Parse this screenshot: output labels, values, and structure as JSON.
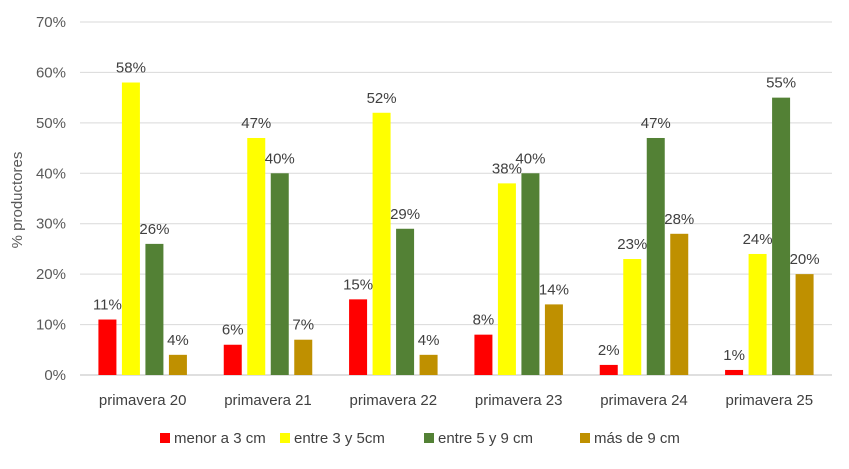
{
  "chart_data": {
    "type": "bar",
    "ylabel": "% productores",
    "ylim": [
      0,
      70
    ],
    "yticks": [
      "0%",
      "10%",
      "20%",
      "30%",
      "40%",
      "50%",
      "60%",
      "70%"
    ],
    "categories": [
      "primavera 20",
      "primavera 21",
      "primavera 22",
      "primavera 23",
      "primavera 24",
      "primavera 25"
    ],
    "series": [
      {
        "name": "menor a 3 cm",
        "color": "#ff0000",
        "values": [
          11,
          6,
          15,
          8,
          2,
          1
        ],
        "labels": [
          "11%",
          "6%",
          "15%",
          "8%",
          "2%",
          "1%"
        ]
      },
      {
        "name": "entre 3 y 5cm",
        "color": "#ffff00",
        "values": [
          58,
          47,
          52,
          38,
          23,
          24
        ],
        "labels": [
          "58%",
          "47%",
          "52%",
          "38%",
          "23%",
          "24%"
        ]
      },
      {
        "name": "entre 5 y 9 cm",
        "color": "#538135",
        "values": [
          26,
          40,
          29,
          40,
          47,
          55
        ],
        "labels": [
          "26%",
          "40%",
          "29%",
          "40%",
          "47%",
          "55%"
        ]
      },
      {
        "name": "más de 9 cm",
        "color": "#bf9000",
        "values": [
          4,
          7,
          4,
          14,
          28,
          20
        ],
        "labels": [
          "4%",
          "7%",
          "4%",
          "14%",
          "28%",
          "20%"
        ]
      }
    ],
    "grid": true,
    "legend": "bottom"
  }
}
